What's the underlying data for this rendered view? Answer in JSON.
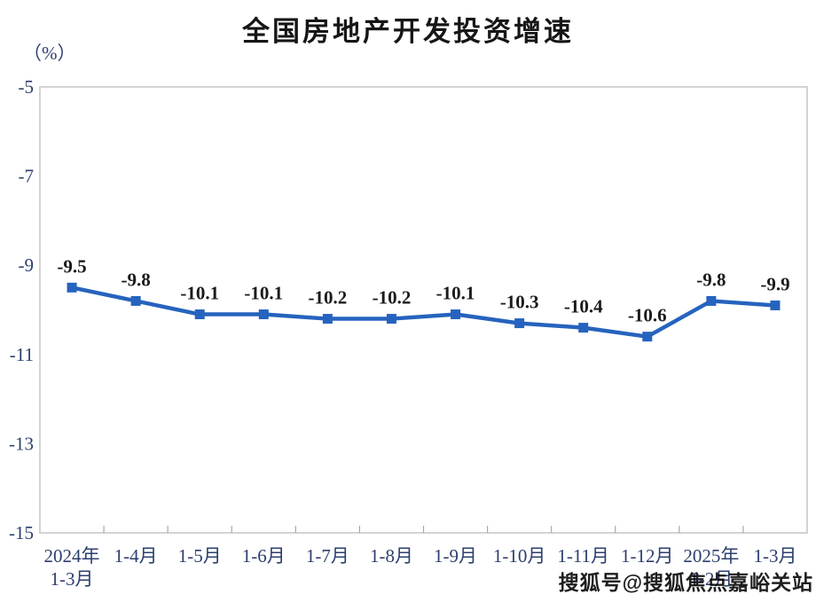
{
  "page": {
    "watermark": "搜狐号@搜狐焦点嘉峪关站"
  },
  "chart_data": {
    "type": "line",
    "title": "全国房地产开发投资增速",
    "ylabel": "（%）",
    "categories": [
      [
        "2024年",
        "1-3月"
      ],
      [
        "1-4月"
      ],
      [
        "1-5月"
      ],
      [
        "1-6月"
      ],
      [
        "1-7月"
      ],
      [
        "1-8月"
      ],
      [
        "1-9月"
      ],
      [
        "1-10月"
      ],
      [
        "1-11月"
      ],
      [
        "1-12月"
      ],
      [
        "2025年",
        "1-2月"
      ],
      [
        "1-3月"
      ]
    ],
    "values": [
      -9.5,
      -9.8,
      -10.1,
      -10.1,
      -10.2,
      -10.2,
      -10.1,
      -10.3,
      -10.4,
      -10.6,
      -9.8,
      -9.9
    ],
    "data_labels": [
      "-9.5",
      "-9.8",
      "-10.1",
      "-10.1",
      "-10.2",
      "-10.2",
      "-10.1",
      "-10.3",
      "-10.4",
      "-10.6",
      "-9.8",
      "-9.9"
    ],
    "ylim": [
      -15,
      -5
    ],
    "yticks": [
      -5,
      -7,
      -9,
      -11,
      -13,
      -15
    ],
    "ytick_labels": [
      "-5",
      "-7",
      "-9",
      "-11",
      "-13",
      "-15"
    ],
    "grid": false,
    "legend": "none",
    "marker": "square",
    "colors": {
      "line": "#2663be",
      "marker": "#2663be",
      "data_label": "#1b1b1b",
      "axis_label": "#2c3e6f",
      "plot_border": "#c8c8c8",
      "tick": "#a8a8a8",
      "background": "#ffffff"
    }
  }
}
